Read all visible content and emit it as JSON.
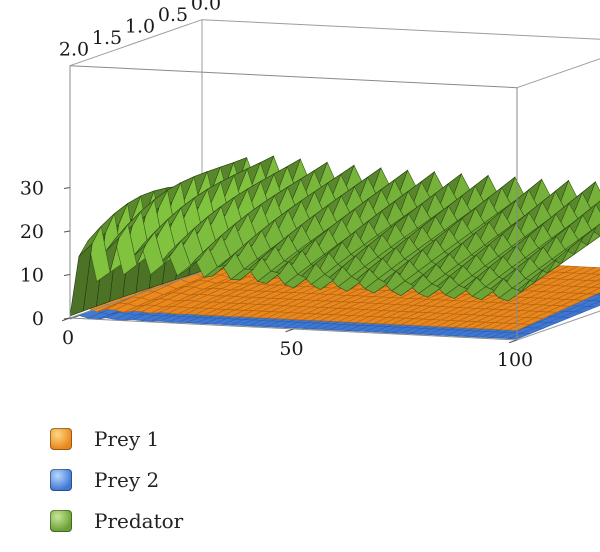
{
  "chart_data": {
    "type": "surface3d",
    "title": "",
    "x_axis": {
      "label": "",
      "ticks": [
        "0",
        "50",
        "100"
      ],
      "range": [
        0,
        100
      ]
    },
    "y_axis": {
      "label": "",
      "ticks": [
        "0.0",
        "0.5",
        "1.0",
        "1.5",
        "2.0"
      ],
      "range": [
        0,
        2
      ]
    },
    "z_axis": {
      "label": "",
      "ticks": [
        "0",
        "10",
        "20",
        "30"
      ],
      "range": [
        0,
        38
      ]
    },
    "series": [
      {
        "name": "Prey 1",
        "color": "#e8871e",
        "start_value": 2,
        "peak_value": 3,
        "equilibrium": 5.5
      },
      {
        "name": "Prey 2",
        "color": "#3f78d4",
        "start_value": 4,
        "peak_value": 5,
        "equilibrium": 3.5
      },
      {
        "name": "Predator",
        "color": "#6aa034",
        "start_value": 0.5,
        "peak_value": 38,
        "equilibrium": 22,
        "peak_times": [
          3,
          9,
          15,
          21,
          27,
          33,
          39,
          45,
          52,
          58,
          64,
          70
        ]
      }
    ],
    "legend_position": "bottom-left",
    "grid": true
  },
  "legend": [
    {
      "label": "Prey 1",
      "color": "#e8871e"
    },
    {
      "label": "Prey 2",
      "color": "#3f78d4"
    },
    {
      "label": "Predator",
      "color": "#6aa034"
    }
  ]
}
